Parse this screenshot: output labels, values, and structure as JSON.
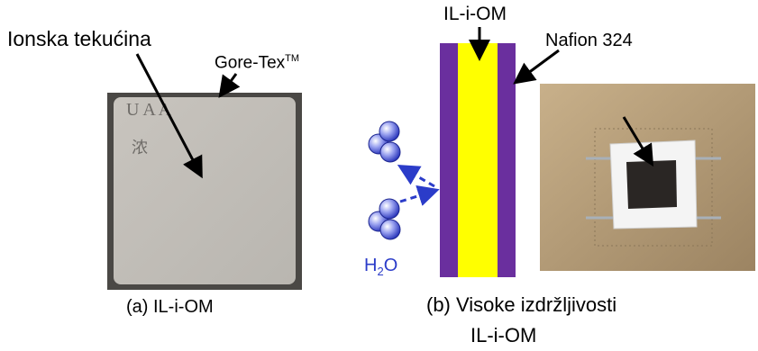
{
  "labels": {
    "liquid": "Ionska tekućina",
    "gore_tex": "Gore-Tex",
    "gore_tex_tm": "TM",
    "il_om_top": "IL-i-OM",
    "nafion": "Nafion 324",
    "water": "H",
    "water_sub": "2",
    "water_o": "O",
    "caption_a": "(a) IL-i-OM",
    "caption_b": "(b)  Visoke izdržljivosti",
    "caption_b2": "IL-i-OM"
  },
  "colors": {
    "membrane_outer": "#6a2f9e",
    "membrane_core": "#ffff00",
    "water_arrow": "#2b3cc9",
    "molecule": "#4b57d8"
  }
}
